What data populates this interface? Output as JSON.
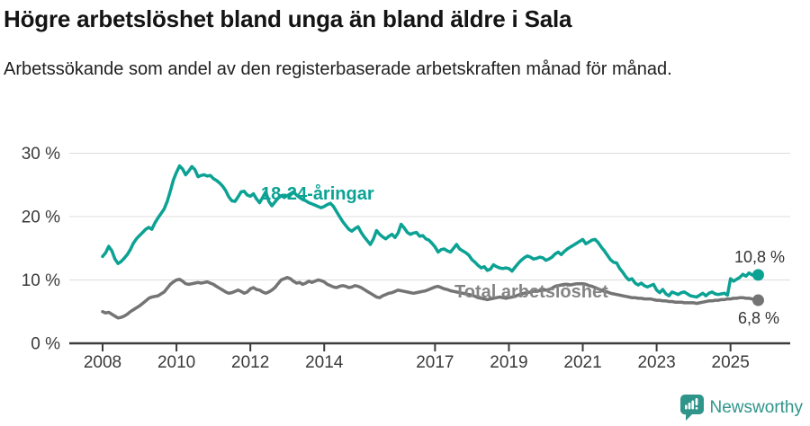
{
  "header": {
    "title": "Högre arbetslöshet bland unga än bland äldre i Sala",
    "subtitle": "Arbetssökande som andel av den registerbaserade arbetskraften månad för månad."
  },
  "footer": {
    "brand": "Newsworthy",
    "logo_icon": "bar-chart-speech-bubble-icon"
  },
  "colors": {
    "youth_series": "#0ba294",
    "total_series": "#747474",
    "total_label": "#848484",
    "grid": "#dcdcdc",
    "axis": "#3b3b3b",
    "tick_text": "#3a3a3a",
    "end_label_text": "#333333",
    "brand": "#2f948a",
    "background": "#ffffff"
  },
  "chart_data": {
    "type": "line",
    "title": "Högre arbetslöshet bland unga än bland äldre i Sala",
    "subtitle": "Arbetssökande som andel av den registerbaserade arbetskraften månad för månad.",
    "x_unit": "month",
    "x_start": "2008-01",
    "x_end": "2025-10",
    "ylim": [
      0,
      31
    ],
    "grid": "horizontal",
    "legend_position": "inline-labels",
    "y_ticks": [
      {
        "value": 0,
        "label": "0 %"
      },
      {
        "value": 10,
        "label": "10 %"
      },
      {
        "value": 20,
        "label": "20 %"
      },
      {
        "value": 30,
        "label": "30 %"
      }
    ],
    "x_ticks": [
      {
        "year": 2008,
        "label": "2008"
      },
      {
        "year": 2010,
        "label": "2010"
      },
      {
        "year": 2012,
        "label": "2012"
      },
      {
        "year": 2014,
        "label": "2014"
      },
      {
        "year": 2017,
        "label": "2017"
      },
      {
        "year": 2019,
        "label": "2019"
      },
      {
        "year": 2021,
        "label": "2021"
      },
      {
        "year": 2023,
        "label": "2023"
      },
      {
        "year": 2025,
        "label": "2025"
      }
    ],
    "series": [
      {
        "name": "18-24-åringar",
        "color": "#0ba294",
        "end_value": 10.8,
        "end_label": "10,8 %",
        "values": [
          13.7,
          14.3,
          15.3,
          14.6,
          13.3,
          12.6,
          12.9,
          13.4,
          14.0,
          14.8,
          15.8,
          16.5,
          17.0,
          17.5,
          18.0,
          18.3,
          18.0,
          19.0,
          19.8,
          20.5,
          21.2,
          22.4,
          24.0,
          25.8,
          27.0,
          28.0,
          27.5,
          26.6,
          27.2,
          27.9,
          27.4,
          26.3,
          26.5,
          26.6,
          26.4,
          26.5,
          26.0,
          25.7,
          25.3,
          24.8,
          24.1,
          23.1,
          22.5,
          22.4,
          23.1,
          23.9,
          24.0,
          23.4,
          23.2,
          23.6,
          22.8,
          22.2,
          23.0,
          23.9,
          22.4,
          21.7,
          22.3,
          22.9,
          23.3,
          23.0,
          23.3,
          23.6,
          23.9,
          23.4,
          23.0,
          22.7,
          22.5,
          22.2,
          22.0,
          21.8,
          21.6,
          21.4,
          21.6,
          21.9,
          22.1,
          21.6,
          20.8,
          20.0,
          19.2,
          18.6,
          18.0,
          17.7,
          18.1,
          18.4,
          17.5,
          16.8,
          16.2,
          15.6,
          16.5,
          17.8,
          17.2,
          16.8,
          16.5,
          16.9,
          17.2,
          16.7,
          17.4,
          18.8,
          18.2,
          17.5,
          17.2,
          17.4,
          17.5,
          16.9,
          17.0,
          16.5,
          16.3,
          15.8,
          15.2,
          14.4,
          14.8,
          14.9,
          14.6,
          14.4,
          15.0,
          15.6,
          14.9,
          14.6,
          14.3,
          13.9,
          13.2,
          12.8,
          12.3,
          11.9,
          12.1,
          11.5,
          11.7,
          12.4,
          12.1,
          11.9,
          11.8,
          11.9,
          11.8,
          11.4,
          12.0,
          12.6,
          13.1,
          13.5,
          13.8,
          13.6,
          13.3,
          13.4,
          13.6,
          13.5,
          13.1,
          13.3,
          13.6,
          14.1,
          14.4,
          14.0,
          14.5,
          14.9,
          15.2,
          15.5,
          15.8,
          16.1,
          16.4,
          15.7,
          16.0,
          16.3,
          16.4,
          15.9,
          15.2,
          14.6,
          13.9,
          13.2,
          12.8,
          12.7,
          11.8,
          11.2,
          10.5,
          10.0,
          10.2,
          9.5,
          9.2,
          9.5,
          9.1,
          8.9,
          9.1,
          9.3,
          8.4,
          8.0,
          8.5,
          7.8,
          7.5,
          8.1,
          7.9,
          7.7,
          8.0,
          8.1,
          7.8,
          7.5,
          7.4,
          7.3,
          7.6,
          7.9,
          7.5,
          7.9,
          8.1,
          7.8,
          7.7,
          7.8,
          7.9,
          7.6,
          10.2,
          9.8,
          10.1,
          10.4,
          10.9,
          10.6,
          11.1,
          10.8,
          10.7,
          10.8
        ]
      },
      {
        "name": "Total arbetslöshet",
        "color": "#747474",
        "end_value": 6.8,
        "end_label": "6,8 %",
        "values": [
          5.0,
          4.8,
          4.9,
          4.6,
          4.3,
          4.0,
          4.1,
          4.3,
          4.6,
          5.0,
          5.3,
          5.6,
          5.9,
          6.3,
          6.7,
          7.1,
          7.3,
          7.4,
          7.5,
          7.8,
          8.1,
          8.7,
          9.3,
          9.7,
          10.0,
          10.1,
          9.8,
          9.4,
          9.3,
          9.4,
          9.5,
          9.6,
          9.5,
          9.6,
          9.7,
          9.5,
          9.3,
          9.0,
          8.7,
          8.4,
          8.1,
          7.9,
          8.0,
          8.2,
          8.4,
          8.2,
          7.9,
          8.1,
          8.6,
          8.8,
          8.5,
          8.4,
          8.1,
          7.9,
          8.1,
          8.4,
          8.8,
          9.4,
          10.0,
          10.2,
          10.4,
          10.2,
          9.8,
          9.5,
          9.6,
          9.3,
          9.5,
          9.8,
          9.6,
          9.8,
          10.0,
          9.9,
          9.7,
          9.3,
          9.1,
          8.9,
          8.8,
          9.0,
          9.1,
          9.0,
          8.8,
          8.9,
          9.1,
          9.0,
          8.8,
          8.5,
          8.2,
          7.9,
          7.6,
          7.3,
          7.2,
          7.5,
          7.7,
          7.9,
          8.0,
          8.2,
          8.4,
          8.3,
          8.2,
          8.1,
          8.0,
          7.9,
          8.0,
          8.1,
          8.2,
          8.3,
          8.5,
          8.7,
          8.9,
          9.0,
          8.8,
          8.6,
          8.5,
          8.3,
          8.2,
          8.1,
          8.0,
          7.9,
          7.8,
          7.7,
          7.6,
          7.4,
          7.2,
          7.1,
          7.0,
          6.9,
          7.0,
          7.1,
          7.2,
          7.3,
          7.2,
          7.1,
          7.2,
          7.3,
          7.4,
          7.6,
          7.8,
          7.9,
          8.0,
          8.1,
          8.2,
          8.3,
          8.3,
          8.4,
          8.4,
          8.5,
          8.7,
          9.0,
          9.1,
          9.2,
          9.3,
          9.3,
          9.2,
          9.3,
          9.4,
          9.4,
          9.4,
          9.3,
          9.1,
          9.0,
          8.8,
          8.6,
          8.4,
          8.2,
          8.1,
          7.9,
          7.8,
          7.7,
          7.6,
          7.5,
          7.4,
          7.3,
          7.2,
          7.2,
          7.1,
          7.1,
          7.0,
          7.0,
          7.0,
          6.9,
          6.8,
          6.8,
          6.7,
          6.7,
          6.6,
          6.6,
          6.5,
          6.5,
          6.5,
          6.4,
          6.4,
          6.4,
          6.4,
          6.3,
          6.4,
          6.5,
          6.6,
          6.7,
          6.7,
          6.8,
          6.8,
          6.9,
          6.9,
          7.0,
          7.0,
          7.1,
          7.1,
          7.2,
          7.2,
          7.1,
          7.1,
          7.0,
          6.9,
          6.8
        ]
      }
    ]
  }
}
